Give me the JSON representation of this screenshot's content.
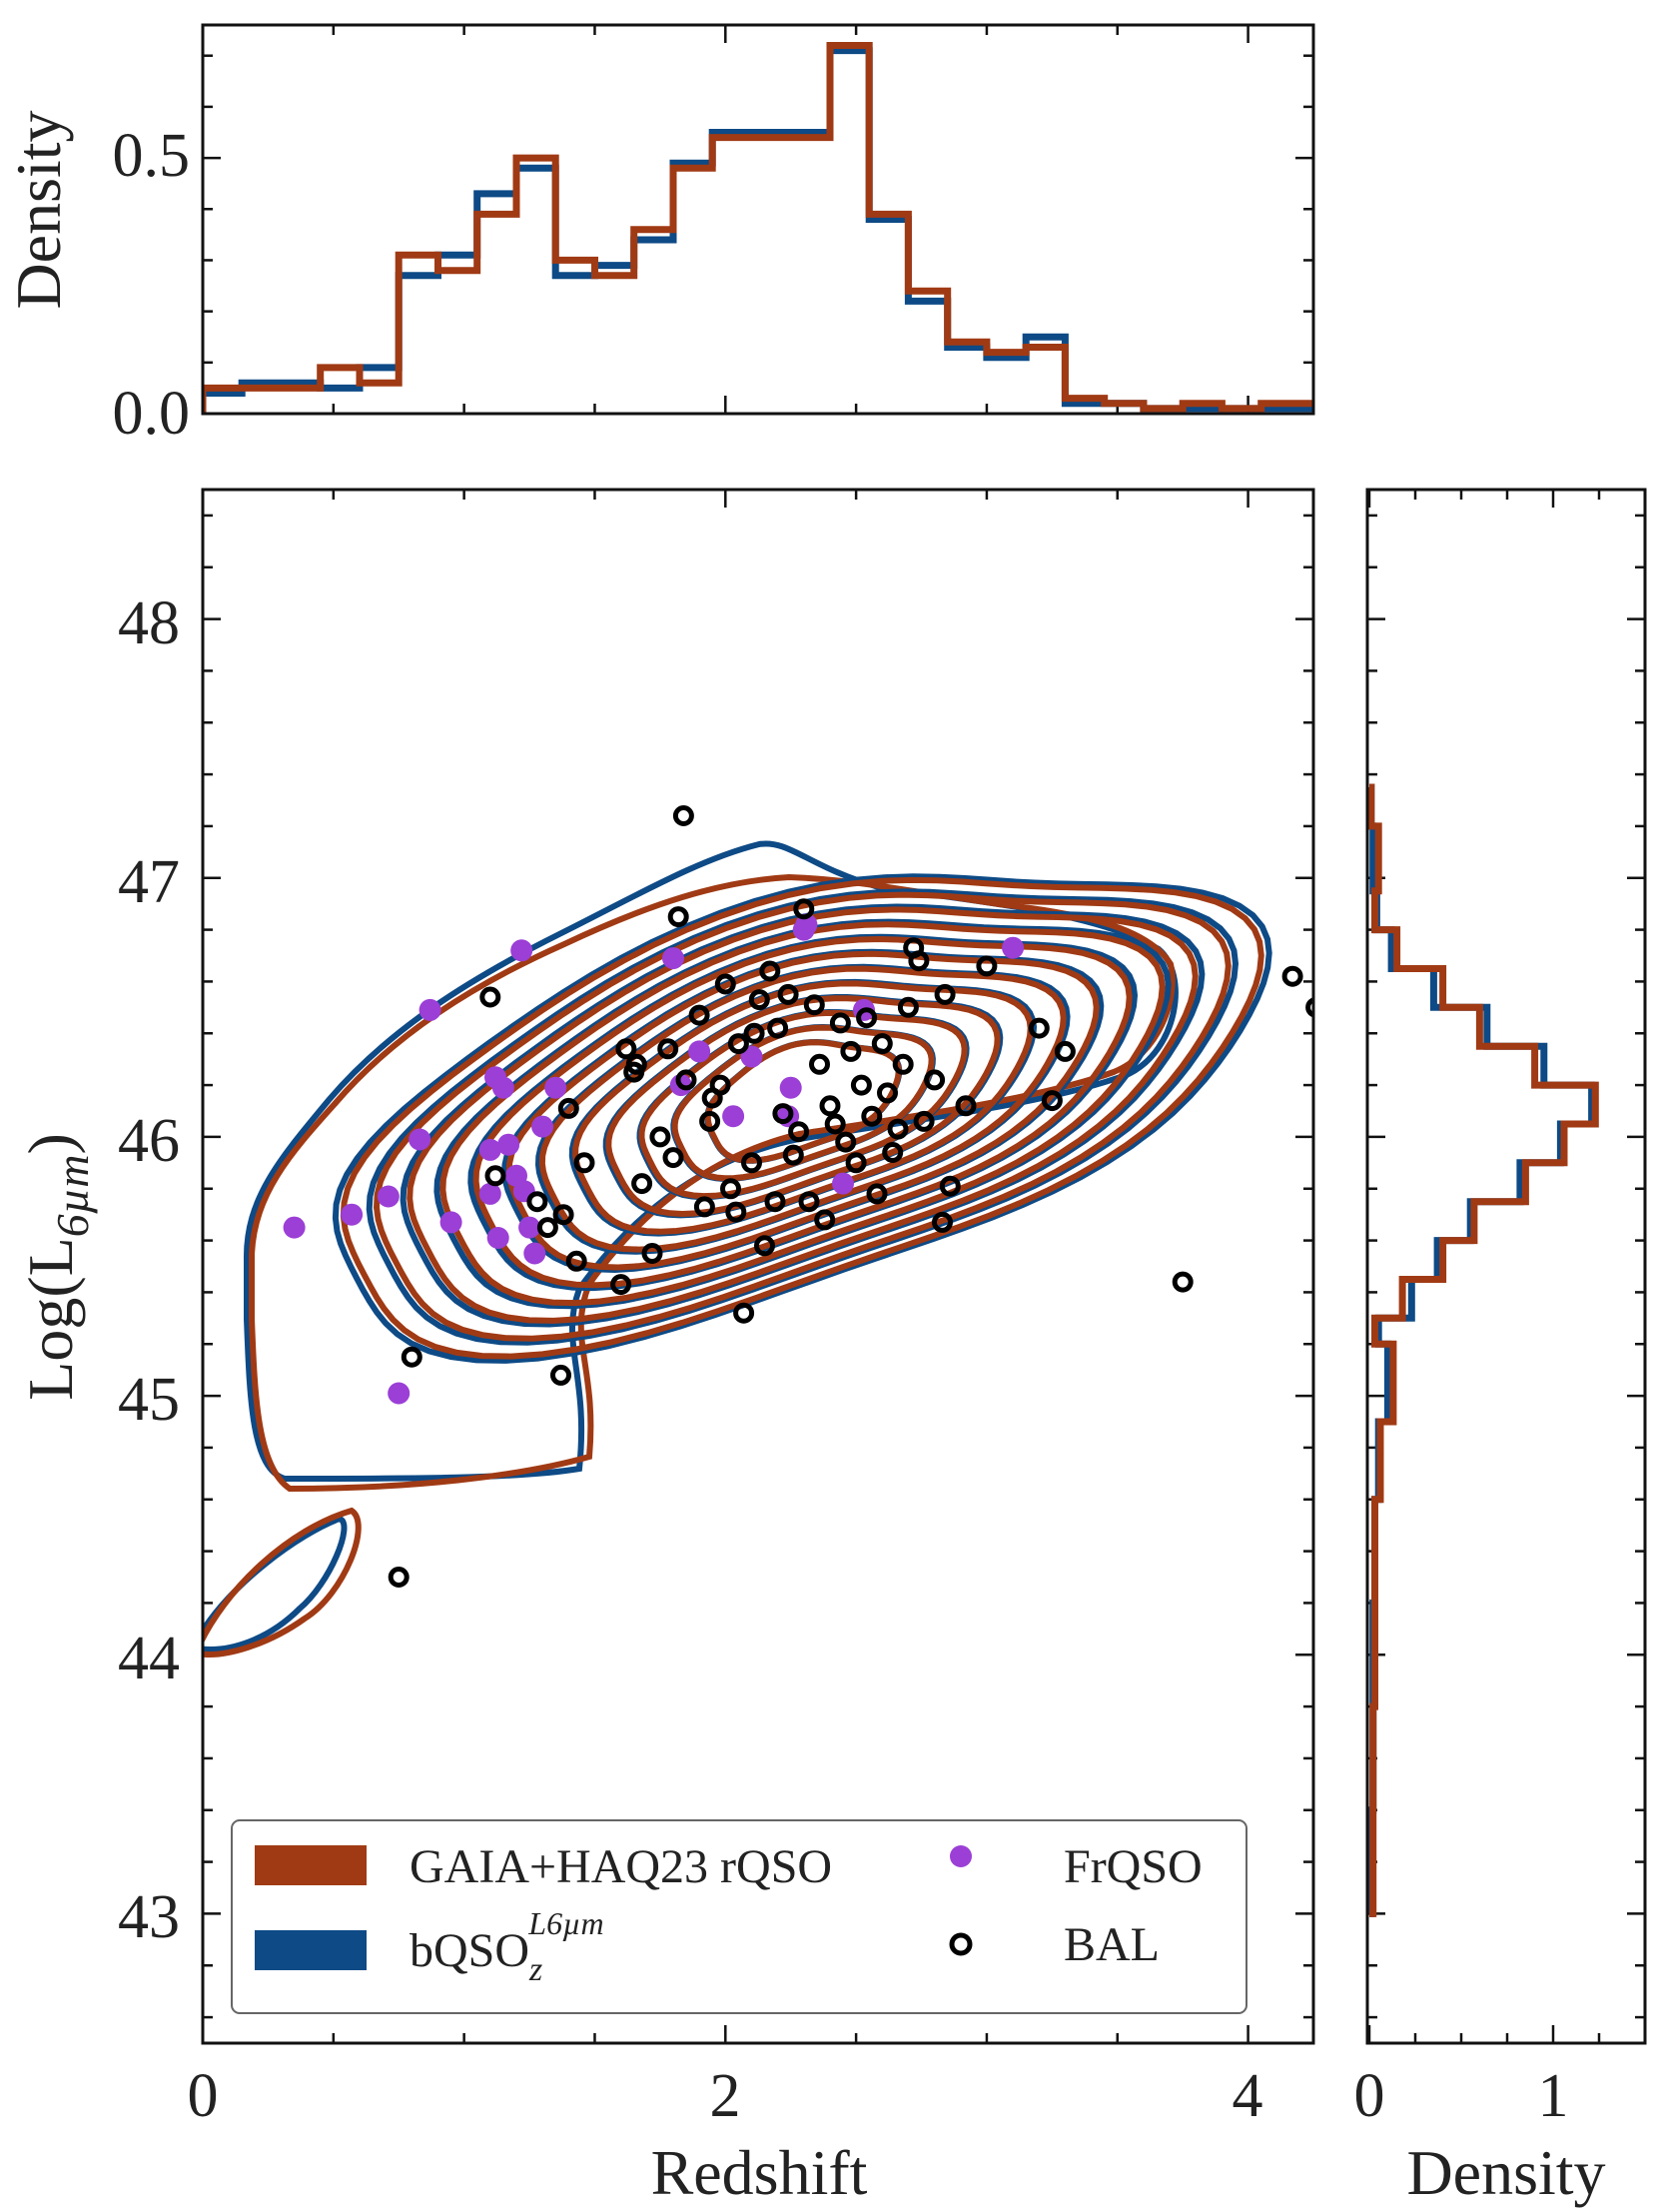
{
  "colors": {
    "rqso": "#a03a14",
    "bqso": "#0d4a86",
    "frqso": "#9b3fd6",
    "bal": "#000000"
  },
  "chart_data": [
    {
      "type": "histogram",
      "name": "top-marginal",
      "ylabel": "Density",
      "xlim": [
        0,
        4.25
      ],
      "ylim": [
        0,
        0.76
      ],
      "yticks": [
        "0.0",
        "0.5"
      ],
      "ytick_values": [
        0.0,
        0.5
      ],
      "bin_edges": [
        0,
        0.15,
        0.45,
        0.6,
        0.75,
        0.9,
        1.05,
        1.2,
        1.35,
        1.5,
        1.65,
        1.8,
        1.95,
        2.1,
        2.25,
        2.4,
        2.55,
        2.7,
        2.85,
        3.0,
        3.15,
        3.3,
        3.45,
        3.6,
        3.75,
        3.9,
        4.05,
        4.25
      ],
      "series": [
        {
          "name": "GAIA+HAQ23 rQSO",
          "values": [
            0.05,
            0.05,
            0.09,
            0.06,
            0.31,
            0.28,
            0.39,
            0.5,
            0.3,
            0.27,
            0.36,
            0.48,
            0.54,
            0.54,
            0.54,
            0.72,
            0.39,
            0.24,
            0.14,
            0.12,
            0.13,
            0.03,
            0.02,
            0.01,
            0.02,
            0.01,
            0.02
          ]
        },
        {
          "name": "bQSO_z^L6um",
          "values": [
            0.04,
            0.06,
            0.05,
            0.09,
            0.27,
            0.31,
            0.43,
            0.48,
            0.27,
            0.29,
            0.34,
            0.49,
            0.55,
            0.55,
            0.55,
            0.71,
            0.38,
            0.22,
            0.13,
            0.11,
            0.15,
            0.02,
            0.02,
            0.01,
            0.01,
            0.01,
            0.01
          ]
        }
      ]
    },
    {
      "type": "scatter+contour",
      "name": "main-panel",
      "xlabel": "Redshift",
      "ylabel": "Log(L",
      "ylabel_sub": "6µm",
      "ylabel_close": ")",
      "xlim": [
        0,
        4.25
      ],
      "ylim": [
        42.5,
        48.5
      ],
      "xticks": [
        "0",
        "2",
        "4"
      ],
      "xtick_values": [
        0,
        2,
        4
      ],
      "yticks": [
        "43",
        "44",
        "45",
        "46",
        "47",
        "48"
      ],
      "ytick_values": [
        43,
        44,
        45,
        46,
        47,
        48
      ],
      "kde_center": {
        "x": 2.3,
        "y": 46.15
      },
      "kde_levels": 12,
      "legend": {
        "location": "lower-left",
        "entries": [
          {
            "label": "GAIA+HAQ23 rQSO",
            "kind": "line"
          },
          {
            "label": "FrQSO",
            "kind": "marker-filled"
          },
          {
            "label": "bQSO",
            "sub": "z",
            "sup": "L6µm",
            "kind": "line"
          },
          {
            "label": "BAL",
            "kind": "marker-open"
          }
        ]
      },
      "frqso_points": [
        [
          0.35,
          45.65
        ],
        [
          0.57,
          45.7
        ],
        [
          0.71,
          45.77
        ],
        [
          0.75,
          45.01
        ],
        [
          0.83,
          45.99
        ],
        [
          0.87,
          46.49
        ],
        [
          0.95,
          45.67
        ],
        [
          1.1,
          45.78
        ],
        [
          1.12,
          46.23
        ],
        [
          1.13,
          45.61
        ],
        [
          1.15,
          46.19
        ],
        [
          1.17,
          45.97
        ],
        [
          1.2,
          45.85
        ],
        [
          1.22,
          46.72
        ],
        [
          1.23,
          45.79
        ],
        [
          1.25,
          45.65
        ],
        [
          1.27,
          45.55
        ],
        [
          1.3,
          46.04
        ],
        [
          1.35,
          46.19
        ],
        [
          1.1,
          45.95
        ],
        [
          1.8,
          46.69
        ],
        [
          1.83,
          46.2
        ],
        [
          1.9,
          46.33
        ],
        [
          2.03,
          46.08
        ],
        [
          2.1,
          46.31
        ],
        [
          2.25,
          46.19
        ],
        [
          2.24,
          46.08
        ],
        [
          2.3,
          46.8
        ],
        [
          2.31,
          46.82
        ],
        [
          2.45,
          45.82
        ],
        [
          2.53,
          46.49
        ],
        [
          3.1,
          46.73
        ]
      ],
      "bal_points": [
        [
          0.75,
          44.3
        ],
        [
          0.8,
          45.15
        ],
        [
          1.1,
          46.54
        ],
        [
          1.12,
          45.85
        ],
        [
          1.28,
          45.75
        ],
        [
          1.32,
          45.65
        ],
        [
          1.37,
          45.08
        ],
        [
          1.38,
          45.7
        ],
        [
          1.4,
          46.11
        ],
        [
          1.43,
          45.52
        ],
        [
          1.46,
          45.9
        ],
        [
          1.6,
          45.43
        ],
        [
          1.62,
          46.34
        ],
        [
          1.65,
          46.25
        ],
        [
          1.66,
          46.28
        ],
        [
          1.68,
          45.82
        ],
        [
          1.72,
          45.55
        ],
        [
          1.75,
          46.0
        ],
        [
          1.78,
          46.34
        ],
        [
          1.8,
          45.92
        ],
        [
          1.82,
          46.85
        ],
        [
          1.84,
          47.24
        ],
        [
          1.85,
          46.22
        ],
        [
          1.9,
          46.47
        ],
        [
          1.92,
          45.73
        ],
        [
          1.94,
          46.06
        ],
        [
          1.95,
          46.15
        ],
        [
          1.98,
          46.2
        ],
        [
          2.0,
          46.59
        ],
        [
          2.02,
          45.8
        ],
        [
          2.04,
          45.71
        ],
        [
          2.05,
          46.36
        ],
        [
          2.07,
          45.32
        ],
        [
          2.1,
          45.9
        ],
        [
          2.11,
          46.4
        ],
        [
          2.13,
          46.53
        ],
        [
          2.15,
          45.58
        ],
        [
          2.17,
          46.64
        ],
        [
          2.19,
          45.75
        ],
        [
          2.2,
          46.42
        ],
        [
          2.22,
          46.09
        ],
        [
          2.24,
          46.55
        ],
        [
          2.26,
          45.93
        ],
        [
          2.28,
          46.02
        ],
        [
          2.3,
          46.88
        ],
        [
          2.32,
          45.75
        ],
        [
          2.34,
          46.51
        ],
        [
          2.36,
          46.28
        ],
        [
          2.38,
          45.68
        ],
        [
          2.4,
          46.12
        ],
        [
          2.42,
          46.05
        ],
        [
          2.44,
          46.44
        ],
        [
          2.46,
          45.98
        ],
        [
          2.48,
          46.33
        ],
        [
          2.5,
          45.9
        ],
        [
          2.52,
          46.2
        ],
        [
          2.54,
          46.46
        ],
        [
          2.56,
          46.08
        ],
        [
          2.58,
          45.78
        ],
        [
          2.6,
          46.36
        ],
        [
          2.62,
          46.17
        ],
        [
          2.64,
          45.94
        ],
        [
          2.66,
          46.03
        ],
        [
          2.68,
          46.28
        ],
        [
          2.7,
          46.5
        ],
        [
          2.72,
          46.73
        ],
        [
          2.74,
          46.68
        ],
        [
          2.76,
          46.06
        ],
        [
          2.8,
          46.22
        ],
        [
          2.83,
          45.67
        ],
        [
          2.84,
          46.55
        ],
        [
          2.86,
          45.81
        ],
        [
          2.92,
          46.12
        ],
        [
          3.0,
          46.66
        ],
        [
          3.2,
          46.42
        ],
        [
          3.25,
          46.14
        ],
        [
          3.3,
          46.33
        ],
        [
          3.75,
          45.44
        ],
        [
          4.17,
          46.62
        ],
        [
          4.26,
          46.5
        ]
      ]
    },
    {
      "type": "histogram",
      "orientation": "horizontal",
      "name": "right-marginal",
      "xlabel": "Density",
      "xlim": [
        0,
        1.5
      ],
      "xticks": [
        "0",
        "1"
      ],
      "xtick_values": [
        0,
        1
      ],
      "bin_edges": [
        43.0,
        43.4,
        43.8,
        44.2,
        44.6,
        44.9,
        45.2,
        45.3,
        45.45,
        45.6,
        45.75,
        45.9,
        46.05,
        46.2,
        46.35,
        46.5,
        46.65,
        46.8,
        46.95,
        47.2,
        47.35
      ],
      "series": [
        {
          "name": "GAIA+HAQ23 rQSO",
          "values": [
            0.02,
            0.02,
            0.03,
            0.03,
            0.06,
            0.13,
            0.03,
            0.18,
            0.4,
            0.57,
            0.85,
            1.06,
            1.23,
            0.9,
            0.6,
            0.4,
            0.15,
            0.03,
            0.05,
            0.01
          ]
        },
        {
          "name": "bQSO_z^L6um",
          "values": [
            0.01,
            0.02,
            0.02,
            0.03,
            0.05,
            0.1,
            0.05,
            0.23,
            0.37,
            0.55,
            0.82,
            1.04,
            1.21,
            0.95,
            0.64,
            0.35,
            0.12,
            0.04,
            0.02,
            0.01
          ]
        }
      ]
    }
  ]
}
